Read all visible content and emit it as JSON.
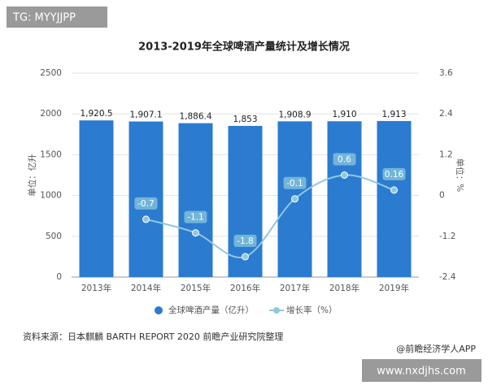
{
  "chart_data": {
    "type": "bar-line",
    "title": "2013-2019年全球啤酒产量统计及增长情况",
    "categories": [
      "2013年",
      "2014年",
      "2015年",
      "2016年",
      "2017年",
      "2018年",
      "2019年"
    ],
    "series": [
      {
        "name": "全球啤酒产量（亿升）",
        "type": "bar",
        "color": "#2b7bd0",
        "values": [
          1920.5,
          1907.1,
          1886.4,
          1853,
          1908.9,
          1910,
          1913
        ],
        "value_labels": [
          "1,920.5",
          "1,907.1",
          "1,886.4",
          "1,853",
          "1,908.9",
          "1,910",
          "1,913"
        ]
      },
      {
        "name": "增长率（%）",
        "type": "line",
        "axis": "y2",
        "color": "#8fc8dd",
        "values": [
          null,
          -0.7,
          -1.1,
          -1.8,
          -0.1,
          0.6,
          0.16
        ]
      }
    ],
    "ylabel": "单位：亿升",
    "y2label": "单位：%",
    "ylim": [
      0,
      2500
    ],
    "yticks": [
      0,
      500,
      1000,
      1500,
      2000,
      2500
    ],
    "y2lim": [
      -2.4,
      3.6
    ],
    "y2ticks": [
      -2.4,
      -1.2,
      0,
      1.2,
      2.4,
      3.6
    ],
    "grid": true,
    "legend": "bottom",
    "source": "资料来源：日本麒麟 BARTH REPORT 2020 前瞻产业研究院整理",
    "credit": "@前瞻经济学人APP"
  },
  "overlay": {
    "tag": "TG: MYYJJPP",
    "site": "www.nxdjhs.com"
  }
}
